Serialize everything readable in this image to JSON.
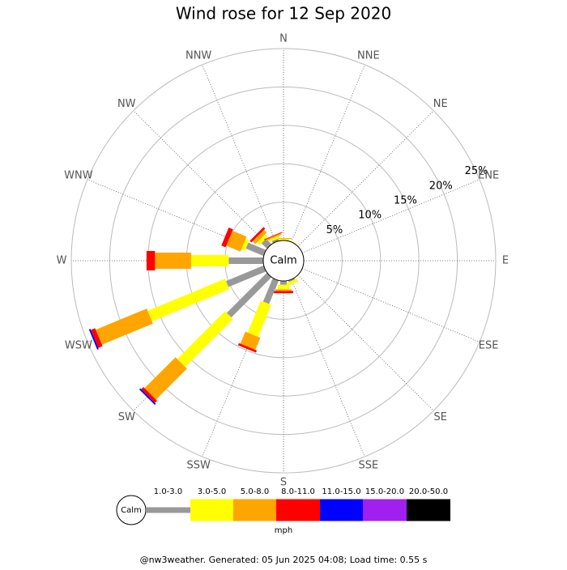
{
  "chart_data": {
    "type": "windrose",
    "title": "Wind rose for 12 Sep 2020",
    "directions": [
      "N",
      "NNE",
      "NE",
      "ENE",
      "E",
      "ESE",
      "SE",
      "SSE",
      "S",
      "SSW",
      "SW",
      "WSW",
      "W",
      "WNW",
      "NW",
      "NNW"
    ],
    "rlim": [
      0,
      25
    ],
    "rticks": [
      {
        "value": 5,
        "label": "5%"
      },
      {
        "value": 10,
        "label": "10%"
      },
      {
        "value": 15,
        "label": "15%"
      },
      {
        "value": 20,
        "label": "20%"
      },
      {
        "value": 25,
        "label": "25%"
      }
    ],
    "calm_label": "Calm",
    "unit": "mph",
    "series": [
      {
        "name": "1.0-3.0",
        "color": "#999999",
        "values": [
          0,
          0,
          0,
          0,
          0,
          0,
          0,
          0.2,
          0.5,
          3.3,
          7.4,
          5.3,
          4.5,
          2.5,
          1.0,
          0.3
        ]
      },
      {
        "name": "3.0-5.0",
        "color": "#ffff00",
        "values": [
          0.2,
          0.1,
          0,
          0,
          0,
          0,
          0,
          0.4,
          0.6,
          4.5,
          8.8,
          10.9,
          4.9,
          0.5,
          0.5,
          0.3
        ]
      },
      {
        "name": "5.0-8.0",
        "color": "#ffa500",
        "values": [
          0.1,
          0,
          0,
          0,
          0,
          0,
          0,
          0,
          0.2,
          1.7,
          5.7,
          7.2,
          4.7,
          2.0,
          0.5,
          0.2
        ]
      },
      {
        "name": "8.0-11.0",
        "color": "#ff0000",
        "values": [
          0,
          0,
          0,
          0,
          0,
          0,
          0,
          0,
          0.3,
          0.3,
          0.4,
          0.6,
          1.1,
          0.6,
          0.3,
          0.1
        ]
      },
      {
        "name": "11.0-15.0",
        "color": "#0000ff",
        "values": [
          0,
          0,
          0,
          0,
          0,
          0,
          0,
          0,
          0,
          0,
          0.2,
          0.2,
          0,
          0,
          0,
          0
        ]
      },
      {
        "name": "15.0-20.0",
        "color": "#a020f0",
        "values": [
          0,
          0,
          0,
          0,
          0,
          0,
          0,
          0,
          0,
          0,
          0,
          0,
          0,
          0,
          0,
          0
        ]
      },
      {
        "name": "20.0-50.0",
        "color": "#000000",
        "values": [
          0,
          0,
          0,
          0,
          0,
          0,
          0,
          0,
          0,
          0,
          0,
          0,
          0,
          0,
          0,
          0
        ]
      }
    ],
    "footer": "@nw3weather. Generated: 05 Jun 2025 04:08; Load time: 0.55 s"
  }
}
